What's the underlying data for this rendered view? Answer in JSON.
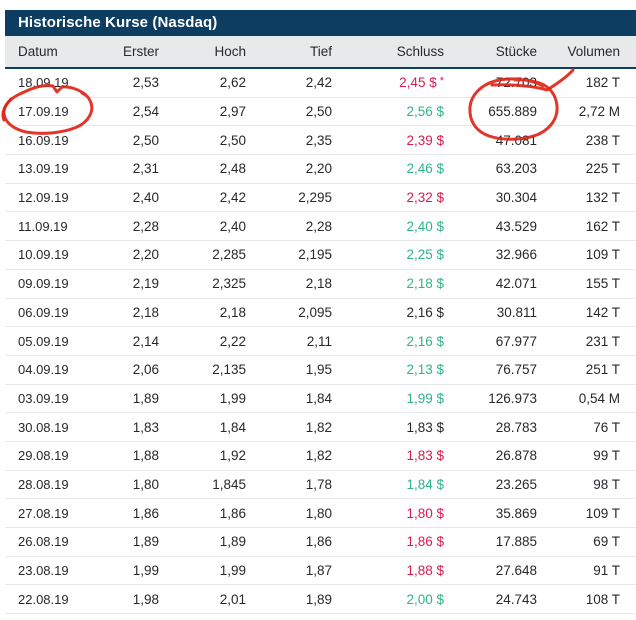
{
  "header": {
    "title": "Historische Kurse (Nasdaq)"
  },
  "table": {
    "columns": [
      {
        "key": "datum",
        "label": "Datum"
      },
      {
        "key": "erster",
        "label": "Erster"
      },
      {
        "key": "hoch",
        "label": "Hoch"
      },
      {
        "key": "tief",
        "label": "Tief"
      },
      {
        "key": "schluss",
        "label": "Schluss"
      },
      {
        "key": "stuecke",
        "label": "Stücke"
      },
      {
        "key": "volumen",
        "label": "Volumen"
      }
    ],
    "rows": [
      {
        "datum": "18.09.19",
        "erster": "2,53",
        "hoch": "2,62",
        "tief": "2,42",
        "schluss": "2,45 $",
        "schluss_note": "*",
        "trend": "down",
        "stuecke": "72.703",
        "volumen": "182 T"
      },
      {
        "datum": "17.09.19",
        "erster": "2,54",
        "hoch": "2,97",
        "tief": "2,50",
        "schluss": "2,56 $",
        "schluss_note": "",
        "trend": "up",
        "stuecke": "655.889",
        "volumen": "2,72 M"
      },
      {
        "datum": "16.09.19",
        "erster": "2,50",
        "hoch": "2,50",
        "tief": "2,35",
        "schluss": "2,39 $",
        "schluss_note": "",
        "trend": "down",
        "stuecke": "47.081",
        "volumen": "238 T"
      },
      {
        "datum": "13.09.19",
        "erster": "2,31",
        "hoch": "2,48",
        "tief": "2,20",
        "schluss": "2,46 $",
        "schluss_note": "",
        "trend": "up",
        "stuecke": "63.203",
        "volumen": "225 T"
      },
      {
        "datum": "12.09.19",
        "erster": "2,40",
        "hoch": "2,42",
        "tief": "2,295",
        "schluss": "2,32 $",
        "schluss_note": "",
        "trend": "down",
        "stuecke": "30.304",
        "volumen": "132 T"
      },
      {
        "datum": "11.09.19",
        "erster": "2,28",
        "hoch": "2,40",
        "tief": "2,28",
        "schluss": "2,40 $",
        "schluss_note": "",
        "trend": "up",
        "stuecke": "43.529",
        "volumen": "162 T"
      },
      {
        "datum": "10.09.19",
        "erster": "2,20",
        "hoch": "2,285",
        "tief": "2,195",
        "schluss": "2,25 $",
        "schluss_note": "",
        "trend": "up",
        "stuecke": "32.966",
        "volumen": "109 T"
      },
      {
        "datum": "09.09.19",
        "erster": "2,19",
        "hoch": "2,325",
        "tief": "2,18",
        "schluss": "2,18 $",
        "schluss_note": "",
        "trend": "up",
        "stuecke": "42.071",
        "volumen": "155 T"
      },
      {
        "datum": "06.09.19",
        "erster": "2,18",
        "hoch": "2,18",
        "tief": "2,095",
        "schluss": "2,16 $",
        "schluss_note": "",
        "trend": "neutral",
        "stuecke": "30.811",
        "volumen": "142 T"
      },
      {
        "datum": "05.09.19",
        "erster": "2,14",
        "hoch": "2,22",
        "tief": "2,11",
        "schluss": "2,16 $",
        "schluss_note": "",
        "trend": "up",
        "stuecke": "67.977",
        "volumen": "231 T"
      },
      {
        "datum": "04.09.19",
        "erster": "2,06",
        "hoch": "2,135",
        "tief": "1,95",
        "schluss": "2,13 $",
        "schluss_note": "",
        "trend": "up",
        "stuecke": "76.757",
        "volumen": "251 T"
      },
      {
        "datum": "03.09.19",
        "erster": "1,89",
        "hoch": "1,99",
        "tief": "1,84",
        "schluss": "1,99 $",
        "schluss_note": "",
        "trend": "up",
        "stuecke": "126.973",
        "volumen": "0,54 M"
      },
      {
        "datum": "30.08.19",
        "erster": "1,83",
        "hoch": "1,84",
        "tief": "1,82",
        "schluss": "1,83 $",
        "schluss_note": "",
        "trend": "neutral",
        "stuecke": "28.783",
        "volumen": "76 T"
      },
      {
        "datum": "29.08.19",
        "erster": "1,88",
        "hoch": "1,92",
        "tief": "1,82",
        "schluss": "1,83 $",
        "schluss_note": "",
        "trend": "down",
        "stuecke": "26.878",
        "volumen": "99 T"
      },
      {
        "datum": "28.08.19",
        "erster": "1,80",
        "hoch": "1,845",
        "tief": "1,78",
        "schluss": "1,84 $",
        "schluss_note": "",
        "trend": "up",
        "stuecke": "23.265",
        "volumen": "98 T"
      },
      {
        "datum": "27.08.19",
        "erster": "1,86",
        "hoch": "1,86",
        "tief": "1,80",
        "schluss": "1,80 $",
        "schluss_note": "",
        "trend": "down",
        "stuecke": "35.869",
        "volumen": "109 T"
      },
      {
        "datum": "26.08.19",
        "erster": "1,89",
        "hoch": "1,89",
        "tief": "1,86",
        "schluss": "1,86 $",
        "schluss_note": "",
        "trend": "down",
        "stuecke": "17.885",
        "volumen": "69 T"
      },
      {
        "datum": "23.08.19",
        "erster": "1,99",
        "hoch": "1,99",
        "tief": "1,87",
        "schluss": "1,88 $",
        "schluss_note": "",
        "trend": "down",
        "stuecke": "27.648",
        "volumen": "91 T"
      },
      {
        "datum": "22.08.19",
        "erster": "1,98",
        "hoch": "2,01",
        "tief": "1,89",
        "schluss": "2,00 $",
        "schluss_note": "",
        "trend": "up",
        "stuecke": "24.743",
        "volumen": "108 T"
      }
    ]
  },
  "annotations": {
    "circle_datum_target": "17.09.19",
    "circle_stuecke_target": "655.889",
    "strike_target": "72.703"
  },
  "colors": {
    "title_bar_bg": "#0d3d61",
    "title_text": "#ffffff",
    "header_row_bg": "#e8e9eb",
    "body_text": "#26282b",
    "positive": "#2fb486",
    "negative": "#dc1a4e",
    "row_separator": "#e7e8e8",
    "annotation_red": "#e0251a"
  }
}
